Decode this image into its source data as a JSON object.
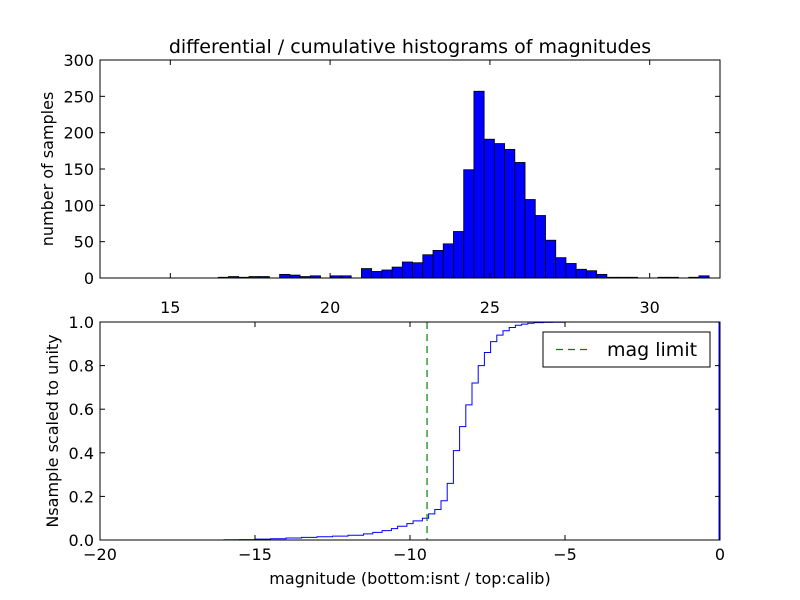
{
  "chart_data": [
    {
      "type": "bar",
      "title": "differential / cumulative histograms of magnitudes",
      "ylabel": "number of samples",
      "xlim": [
        12.8,
        32.2
      ],
      "ylim": [
        0,
        300
      ],
      "x_ticks": [
        15,
        20,
        25,
        30
      ],
      "y_ticks": [
        0,
        50,
        100,
        150,
        200,
        250,
        300
      ],
      "bar_color": "#0000ff",
      "bin_width": 0.32,
      "bin_starts": [
        16.5,
        16.82,
        17.14,
        17.46,
        17.78,
        18.42,
        18.74,
        19.06,
        19.38,
        20.02,
        20.34,
        20.98,
        21.3,
        21.62,
        21.94,
        22.26,
        22.58,
        22.9,
        23.22,
        23.54,
        23.86,
        24.18,
        24.5,
        24.82,
        25.14,
        25.46,
        25.78,
        26.1,
        26.42,
        26.74,
        27.06,
        27.38,
        27.7,
        28.02,
        28.34,
        28.66,
        28.98,
        29.3,
        30.26,
        30.58,
        31.22,
        31.54
      ],
      "counts": [
        1,
        2,
        1,
        2,
        2,
        5,
        4,
        2,
        3,
        3,
        3,
        13,
        9,
        11,
        15,
        22,
        21,
        32,
        38,
        47,
        64,
        149,
        257,
        191,
        185,
        177,
        159,
        108,
        86,
        52,
        28,
        20,
        12,
        10,
        5,
        1,
        1,
        1,
        1,
        1,
        1,
        3
      ]
    },
    {
      "type": "line",
      "ylabel": "Nsample scaled to unity",
      "xlabel": "magnitude (bottom:isnt / top:calib)",
      "xlim": [
        -20,
        0
      ],
      "ylim": [
        0,
        1
      ],
      "x_ticks": [
        -20,
        -15,
        -10,
        -5,
        0
      ],
      "x_tick_labels": [
        "−20",
        "−15",
        "−10",
        "−5",
        "0"
      ],
      "y_ticks": [
        0,
        0.2,
        0.4,
        0.6,
        0.8,
        1.0
      ],
      "y_tick_labels": [
        "0.0",
        "0.2",
        "0.4",
        "0.6",
        "0.8",
        "1.0"
      ],
      "series": [
        {
          "style": "step",
          "color": "#0000ff",
          "x": [
            -20,
            -16,
            -15.5,
            -15,
            -14.5,
            -14,
            -13.5,
            -13,
            -12.5,
            -12,
            -11.5,
            -11.2,
            -10.9,
            -10.6,
            -10.4,
            -10.1,
            -9.9,
            -9.6,
            -9.4,
            -9.2,
            -9.0,
            -8.8,
            -8.6,
            -8.4,
            -8.2,
            -8.0,
            -7.8,
            -7.6,
            -7.4,
            -7.2,
            -7.0,
            -6.8,
            -6.6,
            -6.4,
            -6.2,
            -6.0,
            -5.7,
            -5.4,
            -5.0,
            -4.0,
            -0.05
          ],
          "values": [
            0,
            0.001,
            0.002,
            0.004,
            0.006,
            0.009,
            0.012,
            0.015,
            0.018,
            0.022,
            0.028,
            0.035,
            0.043,
            0.052,
            0.063,
            0.075,
            0.088,
            0.1,
            0.12,
            0.14,
            0.18,
            0.26,
            0.41,
            0.52,
            0.62,
            0.72,
            0.8,
            0.86,
            0.91,
            0.94,
            0.96,
            0.975,
            0.985,
            0.99,
            0.994,
            0.997,
            0.998,
            0.999,
            1.0,
            1.0,
            1.0
          ]
        },
        {
          "name": "mag limit",
          "style": "dashed-vertical",
          "color": "#008000",
          "x": -9.45
        }
      ],
      "legend": {
        "position": "top-right",
        "entries": [
          "mag limit"
        ]
      }
    }
  ]
}
